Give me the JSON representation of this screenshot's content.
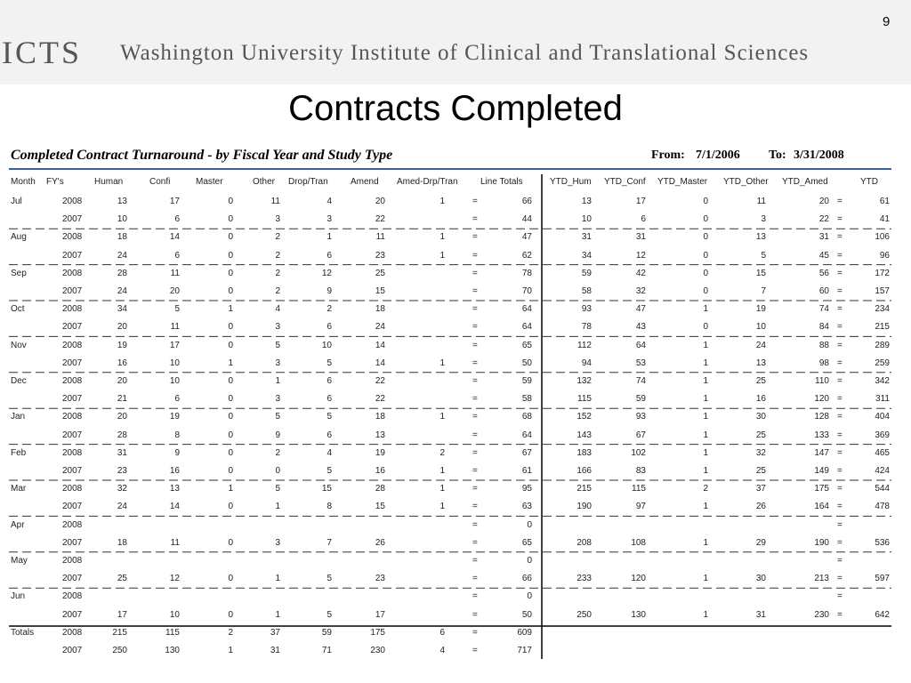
{
  "header": {
    "logo": "ICTS",
    "institution": "Washington University Institute of Clinical and Translational Sciences",
    "page_number": "9"
  },
  "title": "Contracts Completed",
  "report": {
    "title": "Completed Contract Turnaround - by Fiscal Year and Study Type",
    "from_label": "From:",
    "from_date": "7/1/2006",
    "to_label": "To:",
    "to_date": "3/31/2008"
  },
  "table": {
    "columns": [
      "Month",
      "FY's",
      "Human",
      "Confi",
      "Master",
      "Other",
      "Drop/Tran",
      "Amend",
      "Amed-Drp/Tran",
      "Line Totals",
      "YTD_Hum",
      "YTD_Conf",
      "YTD_Master",
      "YTD_Other",
      "YTD_Amed",
      "YTD"
    ],
    "rows": [
      [
        "Jul",
        "2008",
        13,
        17,
        0,
        11,
        4,
        20,
        1,
        "=",
        66,
        13,
        17,
        0,
        11,
        20,
        "=",
        61
      ],
      [
        null,
        "2007",
        10,
        6,
        0,
        3,
        3,
        22,
        null,
        "=",
        44,
        10,
        6,
        0,
        3,
        22,
        "=",
        41
      ],
      [
        "Aug",
        "2008",
        18,
        14,
        0,
        2,
        1,
        11,
        1,
        "=",
        47,
        31,
        31,
        0,
        13,
        31,
        "=",
        106
      ],
      [
        null,
        "2007",
        24,
        6,
        0,
        2,
        6,
        23,
        1,
        "=",
        62,
        34,
        12,
        0,
        5,
        45,
        "=",
        96
      ],
      [
        "Sep",
        "2008",
        28,
        11,
        0,
        2,
        12,
        25,
        null,
        "=",
        78,
        59,
        42,
        0,
        15,
        56,
        "=",
        172
      ],
      [
        null,
        "2007",
        24,
        20,
        0,
        2,
        9,
        15,
        null,
        "=",
        70,
        58,
        32,
        0,
        7,
        60,
        "=",
        157
      ],
      [
        "Oct",
        "2008",
        34,
        5,
        1,
        4,
        2,
        18,
        null,
        "=",
        64,
        93,
        47,
        1,
        19,
        74,
        "=",
        234
      ],
      [
        null,
        "2007",
        20,
        11,
        0,
        3,
        6,
        24,
        null,
        "=",
        64,
        78,
        43,
        0,
        10,
        84,
        "=",
        215
      ],
      [
        "Nov",
        "2008",
        19,
        17,
        0,
        5,
        10,
        14,
        null,
        "=",
        65,
        112,
        64,
        1,
        24,
        88,
        "=",
        289
      ],
      [
        null,
        "2007",
        16,
        10,
        1,
        3,
        5,
        14,
        1,
        "=",
        50,
        94,
        53,
        1,
        13,
        98,
        "=",
        259
      ],
      [
        "Dec",
        "2008",
        20,
        10,
        0,
        1,
        6,
        22,
        null,
        "=",
        59,
        132,
        74,
        1,
        25,
        110,
        "=",
        342
      ],
      [
        null,
        "2007",
        21,
        6,
        0,
        3,
        6,
        22,
        null,
        "=",
        58,
        115,
        59,
        1,
        16,
        120,
        "=",
        311
      ],
      [
        "Jan",
        "2008",
        20,
        19,
        0,
        5,
        5,
        18,
        1,
        "=",
        68,
        152,
        93,
        1,
        30,
        128,
        "=",
        404
      ],
      [
        null,
        "2007",
        28,
        8,
        0,
        9,
        6,
        13,
        null,
        "=",
        64,
        143,
        67,
        1,
        25,
        133,
        "=",
        369
      ],
      [
        "Feb",
        "2008",
        31,
        9,
        0,
        2,
        4,
        19,
        2,
        "=",
        67,
        183,
        102,
        1,
        32,
        147,
        "=",
        465
      ],
      [
        null,
        "2007",
        23,
        16,
        0,
        0,
        5,
        16,
        1,
        "=",
        61,
        166,
        83,
        1,
        25,
        149,
        "=",
        424
      ],
      [
        "Mar",
        "2008",
        32,
        13,
        1,
        5,
        15,
        28,
        1,
        "=",
        95,
        215,
        115,
        2,
        37,
        175,
        "=",
        544
      ],
      [
        null,
        "2007",
        24,
        14,
        0,
        1,
        8,
        15,
        1,
        "=",
        63,
        190,
        97,
        1,
        26,
        164,
        "=",
        478
      ],
      [
        "Apr",
        "2008",
        null,
        null,
        null,
        null,
        null,
        null,
        null,
        "=",
        0,
        null,
        null,
        null,
        null,
        null,
        "=",
        null
      ],
      [
        null,
        "2007",
        18,
        11,
        0,
        3,
        7,
        26,
        null,
        "=",
        65,
        208,
        108,
        1,
        29,
        190,
        "=",
        536
      ],
      [
        "May",
        "2008",
        null,
        null,
        null,
        null,
        null,
        null,
        null,
        "=",
        0,
        null,
        null,
        null,
        null,
        null,
        "=",
        null
      ],
      [
        null,
        "2007",
        25,
        12,
        0,
        1,
        5,
        23,
        null,
        "=",
        66,
        233,
        120,
        1,
        30,
        213,
        "=",
        597
      ],
      [
        "Jun",
        "2008",
        null,
        null,
        null,
        null,
        null,
        null,
        null,
        "=",
        0,
        null,
        null,
        null,
        null,
        null,
        "=",
        null
      ],
      [
        null,
        "2007",
        17,
        10,
        0,
        1,
        5,
        17,
        null,
        "=",
        50,
        250,
        130,
        1,
        31,
        230,
        "=",
        642
      ],
      [
        "Totals",
        "2008",
        215,
        115,
        2,
        37,
        59,
        175,
        6,
        "=",
        609,
        null,
        null,
        null,
        null,
        null,
        null,
        null
      ],
      [
        null,
        "2007",
        250,
        130,
        1,
        31,
        71,
        230,
        4,
        "=",
        717,
        null,
        null,
        null,
        null,
        null,
        null,
        null
      ]
    ]
  }
}
